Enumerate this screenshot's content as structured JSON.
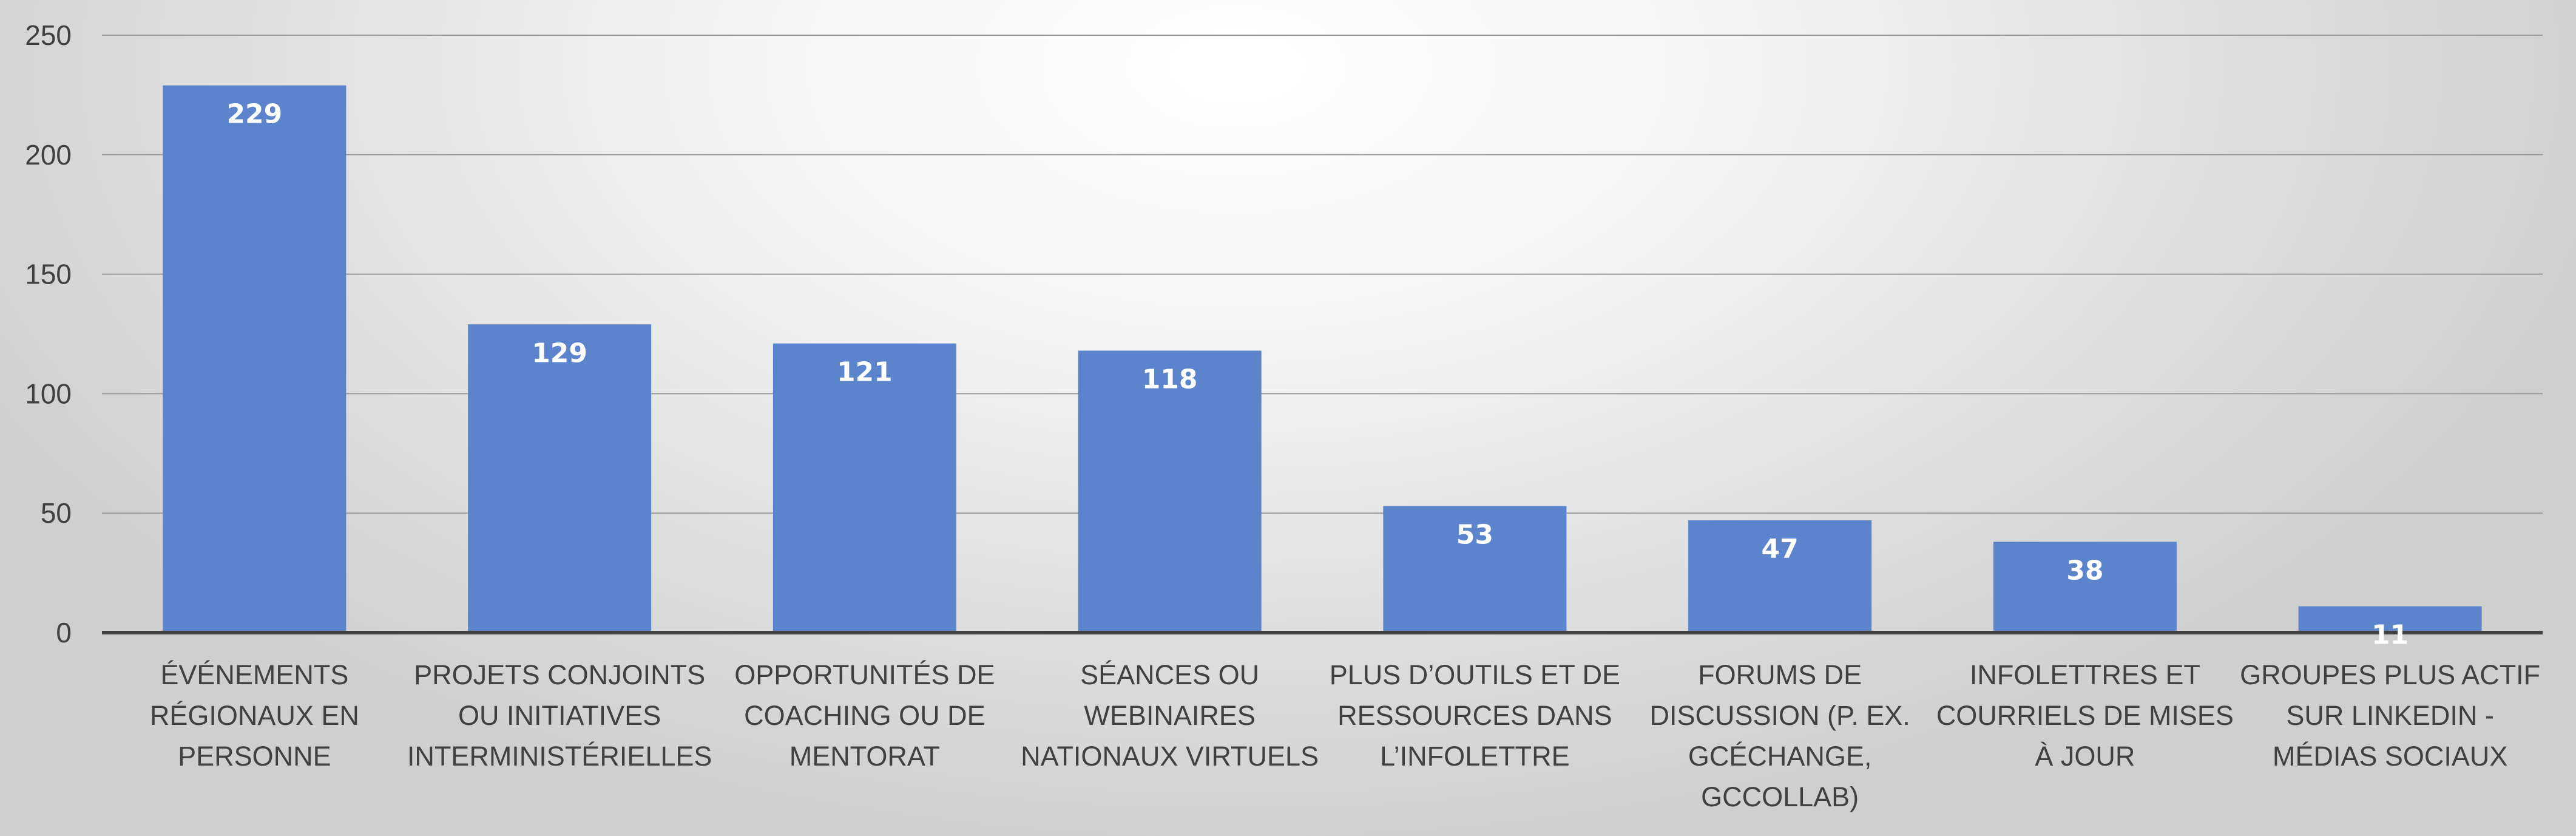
{
  "chart_data": {
    "type": "bar",
    "title": "",
    "xlabel": "",
    "ylabel": "",
    "ylim": [
      0,
      250
    ],
    "yticks": [
      0,
      50,
      100,
      150,
      200,
      250
    ],
    "grid": true,
    "legend": "none",
    "bar_color": "#5b84cc",
    "categories": [
      [
        "ÉVÉNEMENTS",
        "RÉGIONAUX EN",
        "PERSONNE"
      ],
      [
        "PROJETS CONJOINTS",
        "OU INITIATIVES",
        "INTERMINISTÉRIELLES"
      ],
      [
        "OPPORTUNITÉS DE",
        "COACHING OU DE",
        "MENTORAT"
      ],
      [
        "SÉANCES OU",
        "WEBINAIRES",
        "NATIONAUX VIRTUELS"
      ],
      [
        "PLUS D’OUTILS ET DE",
        "RESSOURCES  DANS",
        "L’INFOLETTRE"
      ],
      [
        "FORUMS DE",
        "DISCUSSION (P. EX.",
        "GCÉCHANGE,",
        "GCCOLLAB)"
      ],
      [
        "INFOLETTRES ET",
        "COURRIELS DE MISES",
        "À JOUR"
      ],
      [
        "GROUPES PLUS ACTIF",
        "SUR LINKEDIN -",
        "MÉDIAS SOCIAUX"
      ]
    ],
    "values": [
      229,
      129,
      121,
      118,
      53,
      47,
      38,
      11
    ]
  }
}
